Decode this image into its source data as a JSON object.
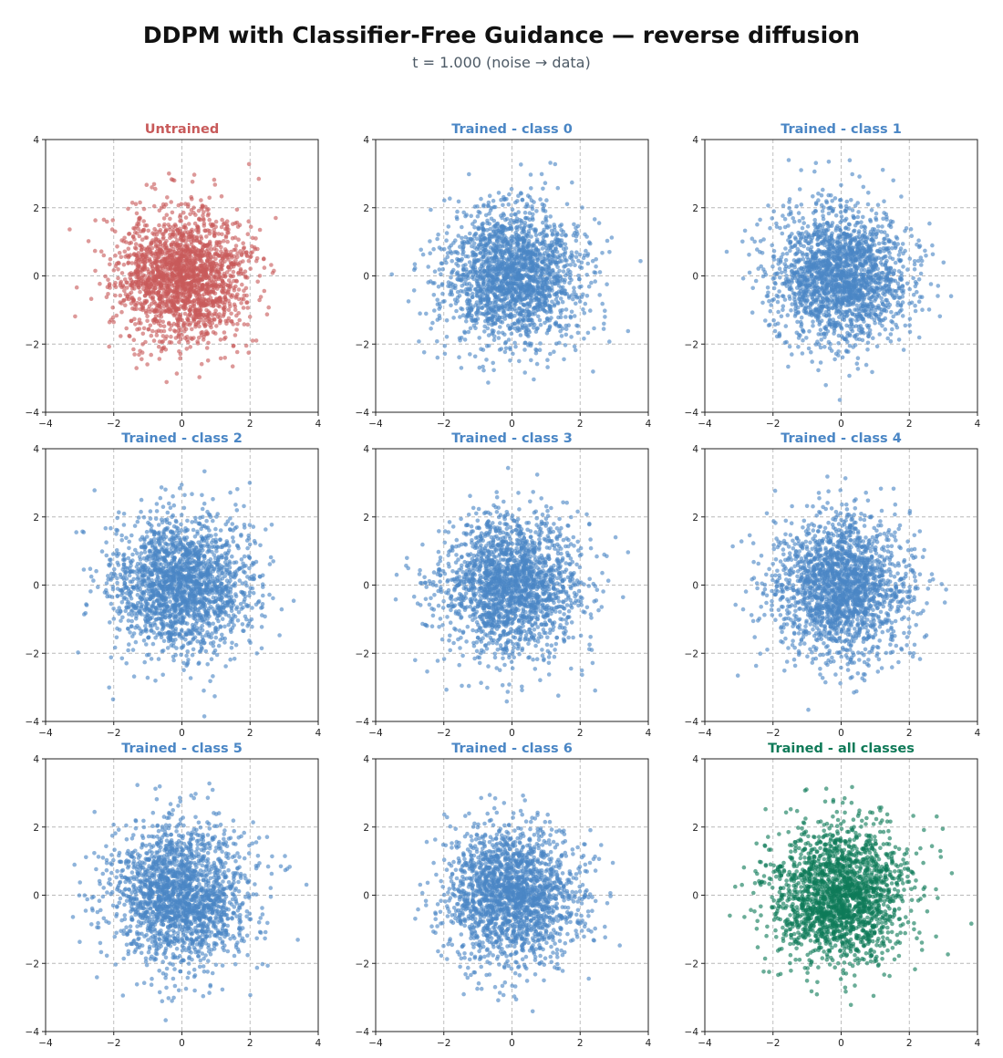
{
  "figure": {
    "title": "DDPM with Classifier-Free Guidance — reverse diffusion",
    "subtitle": "t = 1.000    (noise → data)"
  },
  "colors": {
    "untrained": "#c85a5a",
    "trained": "#4a86c5",
    "all_classes": "#0f7a58",
    "grid": "#b8b8b8",
    "axis": "#222222"
  },
  "chart_data": [
    {
      "type": "scatter",
      "title": "Untrained",
      "color_key": "untrained",
      "xlim": [
        -4,
        4
      ],
      "ylim": [
        -4,
        4
      ],
      "xticks": [
        -4,
        -2,
        0,
        2,
        4
      ],
      "yticks": [
        -4,
        -2,
        0,
        2,
        4
      ],
      "grid": true,
      "grid_style": "dashed",
      "distribution": {
        "kind": "gaussian",
        "mean": [
          0,
          0
        ],
        "std": [
          0.95,
          0.95
        ],
        "n": 2000,
        "seed": 11
      }
    },
    {
      "type": "scatter",
      "title": "Trained - class 0",
      "color_key": "trained",
      "xlim": [
        -4,
        4
      ],
      "ylim": [
        -4,
        4
      ],
      "xticks": [
        -4,
        -2,
        0,
        2,
        4
      ],
      "yticks": [
        -4,
        -2,
        0,
        2,
        4
      ],
      "grid": true,
      "grid_style": "dashed",
      "distribution": {
        "kind": "gaussian",
        "mean": [
          0,
          0
        ],
        "std": [
          1.0,
          1.0
        ],
        "n": 2000,
        "seed": 23
      }
    },
    {
      "type": "scatter",
      "title": "Trained - class 1",
      "color_key": "trained",
      "xlim": [
        -4,
        4
      ],
      "ylim": [
        -4,
        4
      ],
      "xticks": [
        -4,
        -2,
        0,
        2,
        4
      ],
      "yticks": [
        -4,
        -2,
        0,
        2,
        4
      ],
      "grid": true,
      "grid_style": "dashed",
      "distribution": {
        "kind": "gaussian",
        "mean": [
          0,
          0
        ],
        "std": [
          1.0,
          1.0
        ],
        "n": 2000,
        "seed": 37
      }
    },
    {
      "type": "scatter",
      "title": "Trained - class 2",
      "color_key": "trained",
      "xlim": [
        -4,
        4
      ],
      "ylim": [
        -4,
        4
      ],
      "xticks": [
        -4,
        -2,
        0,
        2,
        4
      ],
      "yticks": [
        -4,
        -2,
        0,
        2,
        4
      ],
      "grid": true,
      "grid_style": "dashed",
      "distribution": {
        "kind": "gaussian",
        "mean": [
          0,
          0
        ],
        "std": [
          1.0,
          1.0
        ],
        "n": 2000,
        "seed": 41
      }
    },
    {
      "type": "scatter",
      "title": "Trained - class 3",
      "color_key": "trained",
      "xlim": [
        -4,
        4
      ],
      "ylim": [
        -4,
        4
      ],
      "xticks": [
        -4,
        -2,
        0,
        2,
        4
      ],
      "yticks": [
        -4,
        -2,
        0,
        2,
        4
      ],
      "grid": true,
      "grid_style": "dashed",
      "distribution": {
        "kind": "gaussian",
        "mean": [
          0,
          0
        ],
        "std": [
          1.0,
          1.0
        ],
        "n": 2000,
        "seed": 53
      }
    },
    {
      "type": "scatter",
      "title": "Trained - class 4",
      "color_key": "trained",
      "xlim": [
        -4,
        4
      ],
      "ylim": [
        -4,
        4
      ],
      "xticks": [
        -4,
        -2,
        0,
        2,
        4
      ],
      "yticks": [
        -4,
        -2,
        0,
        2,
        4
      ],
      "grid": true,
      "grid_style": "dashed",
      "distribution": {
        "kind": "gaussian",
        "mean": [
          0,
          0
        ],
        "std": [
          1.0,
          1.0
        ],
        "n": 2000,
        "seed": 67
      }
    },
    {
      "type": "scatter",
      "title": "Trained - class 5",
      "color_key": "trained",
      "xlim": [
        -4,
        4
      ],
      "ylim": [
        -4,
        4
      ],
      "xticks": [
        -4,
        -2,
        0,
        2,
        4
      ],
      "yticks": [
        -4,
        -2,
        0,
        2,
        4
      ],
      "grid": true,
      "grid_style": "dashed",
      "distribution": {
        "kind": "gaussian",
        "mean": [
          0,
          0
        ],
        "std": [
          1.0,
          1.0
        ],
        "n": 2000,
        "seed": 71
      }
    },
    {
      "type": "scatter",
      "title": "Trained - class 6",
      "color_key": "trained",
      "xlim": [
        -4,
        4
      ],
      "ylim": [
        -4,
        4
      ],
      "xticks": [
        -4,
        -2,
        0,
        2,
        4
      ],
      "yticks": [
        -4,
        -2,
        0,
        2,
        4
      ],
      "grid": true,
      "grid_style": "dashed",
      "distribution": {
        "kind": "gaussian",
        "mean": [
          0,
          0
        ],
        "std": [
          1.0,
          1.0
        ],
        "n": 2000,
        "seed": 83
      }
    },
    {
      "type": "scatter",
      "title": "Trained - all classes",
      "color_key": "all_classes",
      "xlim": [
        -4,
        4
      ],
      "ylim": [
        -4,
        4
      ],
      "xticks": [
        -4,
        -2,
        0,
        2,
        4
      ],
      "yticks": [
        -4,
        -2,
        0,
        2,
        4
      ],
      "grid": true,
      "grid_style": "dashed",
      "distribution": {
        "kind": "gaussian",
        "mean": [
          0,
          0
        ],
        "std": [
          1.0,
          1.0
        ],
        "n": 2000,
        "seed": 97
      }
    }
  ]
}
